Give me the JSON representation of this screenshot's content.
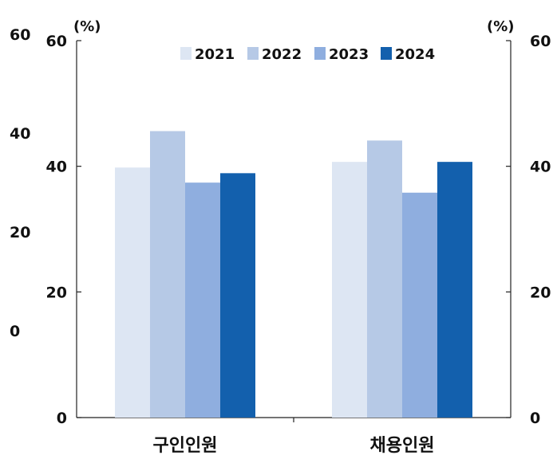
{
  "chart_data": {
    "type": "bar",
    "categories": [
      "구인인원",
      "채용인원"
    ],
    "series": [
      {
        "name": "2021",
        "values": [
          39.8,
          40.7
        ],
        "color": "#dde6f3"
      },
      {
        "name": "2022",
        "values": [
          45.6,
          44.1
        ],
        "color": "#b6c9e6"
      },
      {
        "name": "2023",
        "values": [
          37.4,
          35.8
        ],
        "color": "#8faedf"
      },
      {
        "name": "2024",
        "values": [
          38.9,
          40.7
        ],
        "color": "#1360ad"
      }
    ],
    "ylim": [
      0,
      60
    ],
    "left_ticks": [
      "0",
      "20",
      "40",
      "60"
    ],
    "right_ticks": [
      "0",
      "20",
      "40",
      "60"
    ],
    "left_unit": "(%)",
    "right_unit": "(%)",
    "stray_labels": [
      "60",
      "40",
      "20",
      "0"
    ],
    "legend_position": "top",
    "grid": false
  }
}
